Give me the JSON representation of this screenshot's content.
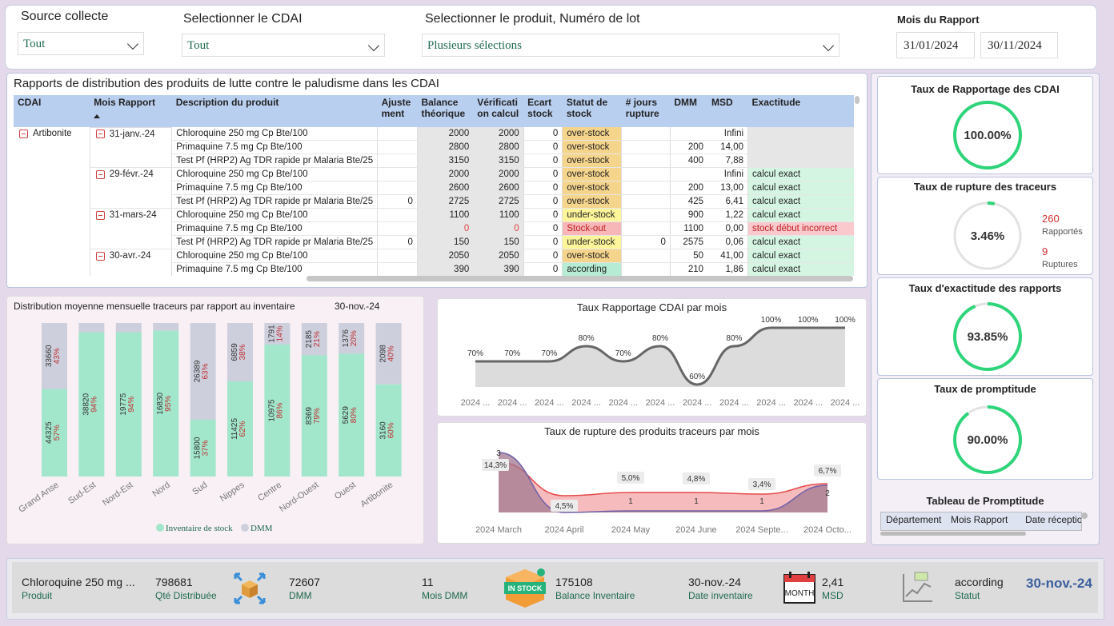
{
  "filters": {
    "source": {
      "label": "Source collecte",
      "value": "Tout"
    },
    "cdai": {
      "label": "Selectionner le CDAI",
      "value": "Tout"
    },
    "product": {
      "label": "Selectionner le produit, Numéro de lot",
      "value": "Plusieurs sélections"
    },
    "period": {
      "label": "Mois du Rapport",
      "start": "31/01/2024",
      "end": "30/11/2024"
    }
  },
  "table": {
    "title": "Rapports de distribution des produits de lutte contre le paludisme dans les CDAI",
    "columns": [
      "CDAI",
      "Mois Rapport",
      "Description du produit",
      "Ajuste ment",
      "Balance théorique",
      "Vérificati on calcul",
      "Ecart stock",
      "Statut de stock",
      "# jours rupture",
      "DMM",
      "MSD",
      "Exactitude"
    ],
    "cdai": "Artibonite",
    "months": [
      "31-janv.-24",
      "29-févr.-24",
      "31-mars-24",
      "30-avr.-24"
    ],
    "rows": [
      {
        "p": "Chloroquine 250 mg Cp Bte/100",
        "adj": "",
        "bal": "2000",
        "ver": "2000",
        "ec": "0",
        "st": "over-stock",
        "jr": "",
        "dmm": "",
        "msd": "Infini",
        "ex": ""
      },
      {
        "p": "Primaquine 7.5 mg Cp Bte/100",
        "adj": "",
        "bal": "2800",
        "ver": "2800",
        "ec": "0",
        "st": "over-stock",
        "jr": "",
        "dmm": "200",
        "msd": "14,00",
        "ex": ""
      },
      {
        "p": "Test Pf (HRP2) Ag TDR rapide pr Malaria Bte/25",
        "adj": "",
        "bal": "3150",
        "ver": "3150",
        "ec": "0",
        "st": "over-stock",
        "jr": "",
        "dmm": "400",
        "msd": "7,88",
        "ex": ""
      },
      {
        "p": "Chloroquine 250 mg Cp Bte/100",
        "adj": "",
        "bal": "2000",
        "ver": "2000",
        "ec": "0",
        "st": "over-stock",
        "jr": "",
        "dmm": "",
        "msd": "Infini",
        "ex": "calcul exact"
      },
      {
        "p": "Primaquine 7.5 mg Cp Bte/100",
        "adj": "",
        "bal": "2600",
        "ver": "2600",
        "ec": "0",
        "st": "over-stock",
        "jr": "",
        "dmm": "200",
        "msd": "13,00",
        "ex": "calcul exact"
      },
      {
        "p": "Test Pf (HRP2) Ag TDR rapide pr Malaria Bte/25",
        "adj": "0",
        "bal": "2725",
        "ver": "2725",
        "ec": "0",
        "st": "over-stock",
        "jr": "",
        "dmm": "425",
        "msd": "6,41",
        "ex": "calcul exact"
      },
      {
        "p": "Chloroquine 250 mg Cp Bte/100",
        "adj": "",
        "bal": "1100",
        "ver": "1100",
        "ec": "0",
        "st": "under-stock",
        "jr": "",
        "dmm": "900",
        "msd": "1,22",
        "ex": "calcul exact"
      },
      {
        "p": "Primaquine 7.5 mg Cp Bte/100",
        "adj": "",
        "bal": "0",
        "ver": "0",
        "ec": "0",
        "st": "Stock-out",
        "jr": "",
        "dmm": "1100",
        "msd": "0,00",
        "ex": "stock début incorrect"
      },
      {
        "p": "Test Pf (HRP2) Ag TDR rapide pr Malaria Bte/25",
        "adj": "0",
        "bal": "150",
        "ver": "150",
        "ec": "0",
        "st": "under-stock",
        "jr": "0",
        "dmm": "2575",
        "msd": "0,06",
        "ex": "calcul exact"
      },
      {
        "p": "Chloroquine 250 mg Cp Bte/100",
        "adj": "",
        "bal": "2050",
        "ver": "2050",
        "ec": "0",
        "st": "over-stock",
        "jr": "",
        "dmm": "50",
        "msd": "41,00",
        "ex": "calcul exact"
      },
      {
        "p": "Primaquine 7.5 mg Cp Bte/100",
        "adj": "",
        "bal": "390",
        "ver": "390",
        "ec": "0",
        "st": "according",
        "jr": "",
        "dmm": "210",
        "msd": "1,86",
        "ex": "calcul exact"
      }
    ]
  },
  "kpis": {
    "rapportage": {
      "title": "Taux de Rapportage des CDAI",
      "value": "100.00%",
      "fraction": 1.0
    },
    "rupture": {
      "title": "Taux de rupture des traceurs",
      "value": "3.46%",
      "fraction": 0.0346,
      "n1": "260",
      "l1": "Rapportés",
      "n2": "9",
      "l2": "Ruptures"
    },
    "exactitude": {
      "title": "Taux d'exactitude des rapports",
      "value": "93.85%",
      "fraction": 0.9385
    },
    "promptitude": {
      "title": "Taux de promptitude",
      "value": "90.00%",
      "fraction": 0.9
    },
    "tableau": {
      "title": "Tableau de Promptitude",
      "cols": [
        "Département",
        "Mois Rapport",
        "Date réceptio"
      ]
    }
  },
  "colors": {
    "green": "#a2e6cc",
    "gray": "#cdcfdd",
    "ring": "#2ed47a",
    "over": "#f5d48c",
    "under": "#fdf59a",
    "out": "#f7b6b8",
    "according": "#b6ecd3",
    "exact": "#d5f5e3",
    "bad": "#f9c9cd"
  },
  "chart_data": [
    {
      "type": "bar",
      "title": "Distribution moyenne mensuelle traceurs par rapport au inventaire",
      "date": "30-nov.-24",
      "categories": [
        "Grand Anse",
        "Sud-Est",
        "Nord-Est",
        "Nord",
        "Sud",
        "Nippes",
        "Centre",
        "Nord-Ouest",
        "Ouest",
        "Artibonite"
      ],
      "series": [
        {
          "name": "Inventaire de stock",
          "values": [
            44325,
            38820,
            19775,
            16830,
            15800,
            11425,
            10975,
            8369,
            5629,
            3160
          ],
          "labels": [
            "44325",
            "38820",
            "19775",
            "16830",
            "15800",
            "11425",
            "10975",
            "8369",
            "5629",
            "3160"
          ],
          "pct": [
            "57%",
            "94%",
            "94%",
            "95%",
            "37%",
            "62%",
            "86%",
            "79%",
            "80%",
            "60%"
          ],
          "frac": [
            0.57,
            0.94,
            0.94,
            0.95,
            0.37,
            0.62,
            0.86,
            0.79,
            0.8,
            0.6
          ]
        },
        {
          "name": "DMM",
          "values": [
            33660,
            2480,
            1270,
            890,
            26389,
            6859,
            1791,
            2185,
            1376,
            2098
          ],
          "labels": [
            "33660",
            "",
            "",
            "",
            "26389",
            "6859",
            "1791",
            "2185",
            "1376",
            "2098"
          ],
          "pct": [
            "43%",
            "",
            "",
            "",
            "63%",
            "38%",
            "14%",
            "21%",
            "20%",
            "40%"
          ]
        }
      ],
      "legend": "bottom"
    },
    {
      "type": "area",
      "title": "Taux Rapportage CDAI par mois",
      "categories": [
        "2024 ...",
        "2024 ...",
        "2024 ...",
        "2024 ...",
        "2024 ...",
        "2024 ...",
        "2024 ...",
        "2024 ...",
        "2024 ...",
        "2024 ...",
        "2024 ..."
      ],
      "values": [
        70,
        70,
        70,
        80,
        70,
        80,
        60,
        80,
        100,
        100,
        100
      ],
      "labels": [
        "70%",
        "70%",
        "70%",
        "80%",
        "70%",
        "80%",
        "60%",
        "80%",
        "100%",
        "100%",
        "100%"
      ],
      "ylim": [
        50,
        110
      ]
    },
    {
      "type": "area",
      "title": "Taux de rupture des produits traceurs par mois",
      "categories": [
        "2024 March",
        "2024 April",
        "2024 May",
        "2024 June",
        "2024 Septe...",
        "2024 Octo..."
      ],
      "series": [
        {
          "values": [
            14.3,
            4.5,
            5.0,
            4.8,
            3.4,
            6.7
          ],
          "labels": [
            "14,3%",
            "4,5%",
            "5,0%",
            "4,8%",
            "3,4%",
            "6,7%"
          ]
        },
        {
          "values": [
            3,
            0,
            1,
            1,
            1,
            2
          ],
          "labels": [
            "3",
            "",
            "1",
            "1",
            "1",
            "2"
          ]
        }
      ]
    }
  ],
  "footer": {
    "product": {
      "v": "Chloroquine 250 mg ...",
      "l": "Produit"
    },
    "qty": {
      "v": "798681",
      "l": "Qté Distribuée"
    },
    "dmm": {
      "v": "72607",
      "l": "DMM"
    },
    "mois": {
      "v": "11",
      "l": "Mois DMM"
    },
    "balance": {
      "v": "175108",
      "l": "Balance Inventaire"
    },
    "dateinv": {
      "v": "30-nov.-24",
      "l": "Date inventaire"
    },
    "msd": {
      "v": "2,41",
      "l": "MSD"
    },
    "statut": {
      "v": "according",
      "l": "Statut"
    },
    "date": "30-nov.-24",
    "instock": "IN STOCK",
    "month": "MONTH"
  }
}
